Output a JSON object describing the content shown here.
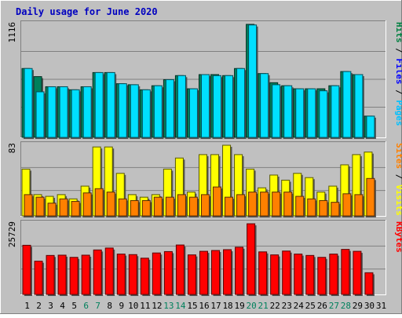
{
  "chart_data": [
    {
      "type": "bar",
      "title": "Daily usage for June 2020",
      "panel": "hits-files-pages",
      "ymax_label": "1116",
      "ylim": [
        0,
        1116
      ],
      "categories": [
        "1",
        "2",
        "3",
        "4",
        "5",
        "6",
        "7",
        "8",
        "9",
        "10",
        "11",
        "12",
        "13",
        "14",
        "15",
        "16",
        "17",
        "18",
        "19",
        "20",
        "21",
        "22",
        "23",
        "24",
        "25",
        "26",
        "27",
        "28",
        "29",
        "30",
        "31"
      ],
      "weekend_days": [
        "6",
        "7",
        "13",
        "14",
        "20",
        "21",
        "27",
        "28"
      ],
      "legend": [
        {
          "label": "Pages",
          "color": "#00c0ff"
        },
        {
          "label": "Files",
          "color": "#0000ff"
        },
        {
          "label": "Hits",
          "color": "#008040"
        }
      ],
      "series": [
        {
          "name": "Hits",
          "color": "#00805c",
          "values": [
            680,
            600,
            500,
            500,
            470,
            500,
            640,
            640,
            530,
            520,
            470,
            510,
            570,
            610,
            480,
            620,
            620,
            610,
            680,
            1116,
            630,
            540,
            510,
            480,
            480,
            480,
            510,
            650,
            620,
            210,
            null
          ]
        },
        {
          "name": "Pages",
          "color": "#00e0ff",
          "values": [
            680,
            450,
            500,
            500,
            470,
            500,
            640,
            640,
            530,
            520,
            470,
            510,
            570,
            610,
            480,
            620,
            610,
            610,
            680,
            1110,
            630,
            520,
            510,
            480,
            480,
            460,
            510,
            650,
            620,
            210,
            null
          ]
        }
      ]
    },
    {
      "type": "bar",
      "panel": "visits-sites",
      "ymax_label": "83",
      "ylim": [
        0,
        83
      ],
      "categories": [
        "1",
        "2",
        "3",
        "4",
        "5",
        "6",
        "7",
        "8",
        "9",
        "10",
        "11",
        "12",
        "13",
        "14",
        "15",
        "16",
        "17",
        "18",
        "19",
        "20",
        "21",
        "22",
        "23",
        "24",
        "25",
        "26",
        "27",
        "28",
        "29",
        "30",
        "31"
      ],
      "legend": [
        {
          "label": "Visits",
          "color": "#ffff00"
        },
        {
          "label": "Sites",
          "color": "#ff8000"
        }
      ],
      "series": [
        {
          "name": "Visits",
          "color": "#ffff00",
          "values": [
            55,
            25,
            23,
            25,
            20,
            35,
            81,
            81,
            50,
            25,
            22,
            25,
            55,
            68,
            28,
            72,
            72,
            83,
            72,
            55,
            33,
            48,
            42,
            50,
            45,
            28,
            35,
            60,
            72,
            75,
            null
          ]
        },
        {
          "name": "Sites",
          "color": "#ff8000",
          "values": [
            25,
            22,
            15,
            20,
            17,
            27,
            32,
            28,
            20,
            18,
            18,
            22,
            22,
            25,
            22,
            25,
            34,
            22,
            25,
            28,
            28,
            28,
            28,
            23,
            20,
            18,
            16,
            26,
            25,
            44,
            null
          ]
        }
      ]
    },
    {
      "type": "bar",
      "panel": "kbytes",
      "ymax_label": "25729",
      "ylim": [
        0,
        25729
      ],
      "categories": [
        "1",
        "2",
        "3",
        "4",
        "5",
        "6",
        "7",
        "8",
        "9",
        "10",
        "11",
        "12",
        "13",
        "14",
        "15",
        "16",
        "17",
        "18",
        "19",
        "20",
        "21",
        "22",
        "23",
        "24",
        "25",
        "26",
        "27",
        "28",
        "29",
        "30",
        "31"
      ],
      "legend": [
        {
          "label": "KBytes",
          "color": "#ff0000"
        }
      ],
      "series": [
        {
          "name": "KBytes",
          "color": "#ff0000",
          "values": [
            17900,
            12100,
            14200,
            14300,
            13500,
            14300,
            16200,
            16900,
            14700,
            14500,
            13200,
            15100,
            15600,
            18000,
            14400,
            15700,
            16000,
            16300,
            17200,
            25729,
            15500,
            14400,
            15800,
            14700,
            14200,
            13500,
            14700,
            16400,
            15700,
            7900,
            null
          ]
        }
      ]
    }
  ]
}
